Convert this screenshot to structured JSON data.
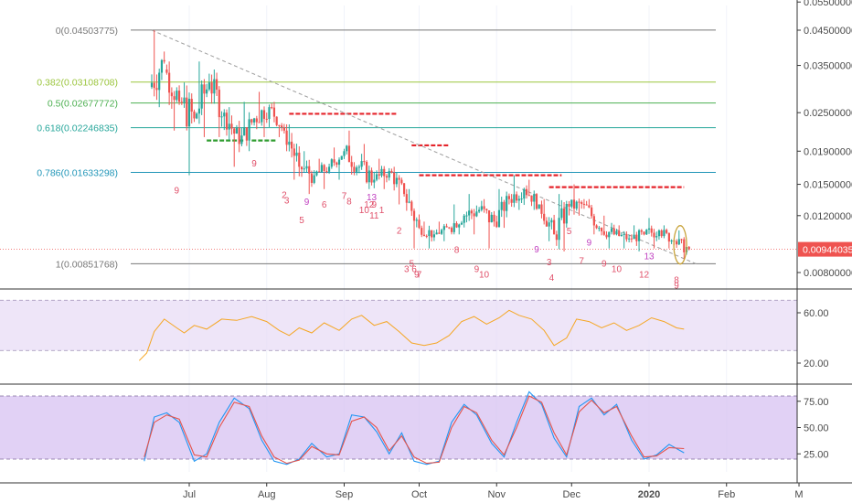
{
  "colors": {
    "up": "#26a69a",
    "down": "#ef5350",
    "rsi_line": "#f5a623",
    "rsi_band": "#e8dcf5",
    "stoch_band": "#d9c6f2",
    "stoch_k": "#2196f3",
    "stoch_d": "#e5534b",
    "last_price": "#ef5350",
    "resistance": "#e5242b",
    "support": "#2e9c2e",
    "trendline": "#9e9e9e",
    "td_sell": "#e0506a",
    "td_buy": "#c040c0",
    "circle": "#c8a33a"
  },
  "fib_levels": [
    {
      "ratio": "0",
      "price": "0.04503775",
      "value": 0.04503775,
      "label": "0(0.04503775)",
      "color": "#787878"
    },
    {
      "ratio": "0.382",
      "price": "0.03108708",
      "value": 0.03108708,
      "label": "0.382(0.03108708)",
      "color": "#9bc53d"
    },
    {
      "ratio": "0.5",
      "price": "0.02677772",
      "value": 0.02677772,
      "label": "0.5(0.02677772)",
      "color": "#4caf50"
    },
    {
      "ratio": "0.618",
      "price": "0.02246835",
      "value": 0.02246835,
      "label": "0.618(0.02246835)",
      "color": "#26a69a"
    },
    {
      "ratio": "0.786",
      "price": "0.01633298",
      "value": 0.01633298,
      "label": "0.786(0.01633298)",
      "color": "#2196b8"
    },
    {
      "ratio": "1",
      "price": "0.00851768",
      "value": 0.00851768,
      "label": "1(0.00851768)",
      "color": "#787878"
    }
  ],
  "price_axis": {
    "ticks": [
      "0.05500000",
      "0.04500000",
      "0.03500000",
      "0.02500000",
      "0.01900000",
      "0.01500000",
      "0.01200000",
      "0.00800000"
    ],
    "tick_values": [
      0.055,
      0.045,
      0.035,
      0.025,
      0.019,
      0.015,
      0.012,
      0.008
    ],
    "scale": "log",
    "last_price_label": "0.00944035",
    "last_price": 0.00944035
  },
  "time_axis": {
    "labels": [
      "Jul",
      "Aug",
      "Sep",
      "Oct",
      "Nov",
      "Dec",
      "2020",
      "Feb",
      "M"
    ],
    "dates": [
      "2019-07-01",
      "2019-08-01",
      "2019-09-01",
      "2019-10-01",
      "2019-11-01",
      "2019-12-01",
      "2020-01-01",
      "2020-02-01",
      "2020-03-01"
    ],
    "bold": [
      false,
      false,
      false,
      false,
      false,
      false,
      true,
      false,
      false
    ]
  },
  "rsi_axis": {
    "ticks": [
      "60.00",
      "20.00"
    ],
    "tick_values": [
      60,
      20
    ],
    "band": [
      30,
      70
    ]
  },
  "stoch_axis": {
    "ticks": [
      "75.00",
      "50.00",
      "25.00"
    ],
    "tick_values": [
      75,
      50,
      25
    ],
    "band": [
      20,
      80
    ]
  },
  "td_labels": [
    {
      "text": "9",
      "date": "2019-06-26",
      "kind": "sell"
    },
    {
      "text": "9",
      "date": "2019-08-17",
      "kind": "buy"
    },
    {
      "text": "9",
      "date": "2019-07-27",
      "kind": "sell"
    },
    {
      "text": "2",
      "date": "2019-08-08",
      "kind": "sell"
    },
    {
      "text": "3",
      "date": "2019-08-09",
      "kind": "sell"
    },
    {
      "text": "5",
      "date": "2019-08-15",
      "kind": "sell"
    },
    {
      "text": "6",
      "date": "2019-08-24",
      "kind": "sell"
    },
    {
      "text": "7",
      "date": "2019-09-01",
      "kind": "sell"
    },
    {
      "text": "8",
      "date": "2019-09-03",
      "kind": "sell"
    },
    {
      "text": "9",
      "date": "2019-09-13",
      "kind": "sell"
    },
    {
      "text": "10",
      "date": "2019-09-09",
      "kind": "sell"
    },
    {
      "text": "11",
      "date": "2019-09-13",
      "kind": "sell"
    },
    {
      "text": "12",
      "date": "2019-09-11",
      "kind": "sell"
    },
    {
      "text": "1",
      "date": "2019-09-16",
      "kind": "sell"
    },
    {
      "text": "2",
      "date": "2019-09-23",
      "kind": "sell"
    },
    {
      "text": "13",
      "date": "2019-09-12",
      "kind": "buy"
    },
    {
      "text": "3",
      "date": "2019-09-26",
      "kind": "sell"
    },
    {
      "text": "9",
      "date": "2019-09-30",
      "kind": "sell"
    },
    {
      "text": "5",
      "date": "2019-09-28",
      "kind": "sell"
    },
    {
      "text": "6",
      "date": "2019-09-29",
      "kind": "sell"
    },
    {
      "text": "7",
      "date": "2019-10-01",
      "kind": "sell"
    },
    {
      "text": "8",
      "date": "2019-10-16",
      "kind": "sell"
    },
    {
      "text": "9",
      "date": "2019-10-24",
      "kind": "sell"
    },
    {
      "text": "10",
      "date": "2019-10-27",
      "kind": "sell"
    },
    {
      "text": "9",
      "date": "2019-11-17",
      "kind": "buy"
    },
    {
      "text": "3",
      "date": "2019-11-22",
      "kind": "sell"
    },
    {
      "text": "4",
      "date": "2019-11-23",
      "kind": "sell"
    },
    {
      "text": "5",
      "date": "2019-11-30",
      "kind": "sell"
    },
    {
      "text": "9",
      "date": "2019-12-08",
      "kind": "buy"
    },
    {
      "text": "7",
      "date": "2019-12-05",
      "kind": "sell"
    },
    {
      "text": "9",
      "date": "2019-12-14",
      "kind": "sell"
    },
    {
      "text": "10",
      "date": "2019-12-19",
      "kind": "sell"
    },
    {
      "text": "12",
      "date": "2019-12-30",
      "kind": "sell"
    },
    {
      "text": "13",
      "date": "2020-01-01",
      "kind": "buy"
    },
    {
      "text": "8",
      "date": "2020-01-12",
      "kind": "sell"
    },
    {
      "text": "9",
      "date": "2020-01-12",
      "kind": "sell"
    }
  ],
  "chart_data": {
    "type": "candlestick",
    "title": "",
    "xlabel": "",
    "ylabel": "",
    "scale": "log",
    "x_range": [
      "2019-06-01",
      "2020-03-05"
    ],
    "ylim": [
      0.007,
      0.056
    ],
    "ohlc": [
      {
        "date": "2019-06-16",
        "open": 0.03,
        "high": 0.045,
        "low": 0.026,
        "close": 0.036
      },
      {
        "date": "2019-06-22",
        "open": 0.034,
        "high": 0.036,
        "low": 0.022,
        "close": 0.027
      },
      {
        "date": "2019-06-28",
        "open": 0.027,
        "high": 0.031,
        "low": 0.016,
        "close": 0.024
      },
      {
        "date": "2019-07-04",
        "open": 0.024,
        "high": 0.036,
        "low": 0.021,
        "close": 0.031
      },
      {
        "date": "2019-07-10",
        "open": 0.031,
        "high": 0.034,
        "low": 0.021,
        "close": 0.025
      },
      {
        "date": "2019-07-16",
        "open": 0.025,
        "high": 0.026,
        "low": 0.017,
        "close": 0.02
      },
      {
        "date": "2019-07-22",
        "open": 0.02,
        "high": 0.027,
        "low": 0.019,
        "close": 0.024
      },
      {
        "date": "2019-07-28",
        "open": 0.024,
        "high": 0.029,
        "low": 0.021,
        "close": 0.026
      },
      {
        "date": "2019-08-03",
        "open": 0.026,
        "high": 0.027,
        "low": 0.021,
        "close": 0.022
      },
      {
        "date": "2019-08-09",
        "open": 0.022,
        "high": 0.023,
        "low": 0.0155,
        "close": 0.017
      },
      {
        "date": "2019-08-15",
        "open": 0.017,
        "high": 0.019,
        "low": 0.014,
        "close": 0.016
      },
      {
        "date": "2019-08-21",
        "open": 0.016,
        "high": 0.018,
        "low": 0.0145,
        "close": 0.017
      },
      {
        "date": "2019-08-27",
        "open": 0.017,
        "high": 0.0195,
        "low": 0.0155,
        "close": 0.019
      },
      {
        "date": "2019-09-02",
        "open": 0.019,
        "high": 0.022,
        "low": 0.016,
        "close": 0.017
      },
      {
        "date": "2019-09-08",
        "open": 0.017,
        "high": 0.02,
        "low": 0.0145,
        "close": 0.0155
      },
      {
        "date": "2019-09-14",
        "open": 0.0155,
        "high": 0.018,
        "low": 0.0145,
        "close": 0.0165
      },
      {
        "date": "2019-09-20",
        "open": 0.0165,
        "high": 0.017,
        "low": 0.013,
        "close": 0.014
      },
      {
        "date": "2019-09-26",
        "open": 0.014,
        "high": 0.0145,
        "low": 0.0095,
        "close": 0.011
      },
      {
        "date": "2019-10-02",
        "open": 0.011,
        "high": 0.0115,
        "low": 0.0095,
        "close": 0.0105
      },
      {
        "date": "2019-10-08",
        "open": 0.0105,
        "high": 0.0115,
        "low": 0.01,
        "close": 0.011
      },
      {
        "date": "2019-10-14",
        "open": 0.011,
        "high": 0.013,
        "low": 0.0105,
        "close": 0.012
      },
      {
        "date": "2019-10-20",
        "open": 0.012,
        "high": 0.014,
        "low": 0.0105,
        "close": 0.0125
      },
      {
        "date": "2019-10-26",
        "open": 0.0125,
        "high": 0.0135,
        "low": 0.0095,
        "close": 0.0115
      },
      {
        "date": "2019-11-01",
        "open": 0.0115,
        "high": 0.0145,
        "low": 0.011,
        "close": 0.0135
      },
      {
        "date": "2019-11-07",
        "open": 0.0135,
        "high": 0.016,
        "low": 0.0125,
        "close": 0.0145
      },
      {
        "date": "2019-11-13",
        "open": 0.0145,
        "high": 0.0155,
        "low": 0.0125,
        "close": 0.013
      },
      {
        "date": "2019-11-19",
        "open": 0.013,
        "high": 0.0135,
        "low": 0.01,
        "close": 0.0105
      },
      {
        "date": "2019-11-25",
        "open": 0.0105,
        "high": 0.014,
        "low": 0.0093,
        "close": 0.0128
      },
      {
        "date": "2019-12-01",
        "open": 0.0128,
        "high": 0.015,
        "low": 0.012,
        "close": 0.013
      },
      {
        "date": "2019-12-07",
        "open": 0.013,
        "high": 0.0135,
        "low": 0.0105,
        "close": 0.011
      },
      {
        "date": "2019-12-13",
        "open": 0.011,
        "high": 0.012,
        "low": 0.0095,
        "close": 0.0105
      },
      {
        "date": "2019-12-19",
        "open": 0.0105,
        "high": 0.0112,
        "low": 0.0095,
        "close": 0.0102
      },
      {
        "date": "2019-12-25",
        "open": 0.0102,
        "high": 0.0112,
        "low": 0.0093,
        "close": 0.0105
      },
      {
        "date": "2019-12-31",
        "open": 0.0105,
        "high": 0.0118,
        "low": 0.0095,
        "close": 0.0108
      },
      {
        "date": "2020-01-06",
        "open": 0.0108,
        "high": 0.0112,
        "low": 0.0095,
        "close": 0.01
      },
      {
        "date": "2020-01-12",
        "open": 0.01,
        "high": 0.0108,
        "low": 0.0088,
        "close": 0.00944
      }
    ],
    "trendline": [
      {
        "date": "2019-06-16",
        "value": 0.045
      },
      {
        "date": "2020-01-20",
        "value": 0.0085
      }
    ],
    "resistance_levels": [
      {
        "value": 0.0248,
        "from": "2019-08-10",
        "to": "2019-09-22"
      },
      {
        "value": 0.0198,
        "from": "2019-09-28",
        "to": "2019-10-13"
      },
      {
        "value": 0.016,
        "from": "2019-10-01",
        "to": "2019-11-27"
      },
      {
        "value": 0.0147,
        "from": "2019-11-22",
        "to": "2020-01-15"
      }
    ],
    "support_levels": [
      {
        "value": 0.0205,
        "from": "2019-07-08",
        "to": "2019-07-23"
      },
      {
        "value": 0.0205,
        "from": "2019-07-26",
        "to": "2019-08-05"
      }
    ],
    "series": [
      {
        "name": "RSI",
        "type": "line",
        "ylim": [
          10,
          75
        ],
        "x": [
          "2019-06-11",
          "2019-06-14",
          "2019-06-17",
          "2019-06-21",
          "2019-06-26",
          "2019-06-29",
          "2019-07-03",
          "2019-07-08",
          "2019-07-14",
          "2019-07-20",
          "2019-07-26",
          "2019-08-01",
          "2019-08-06",
          "2019-08-10",
          "2019-08-14",
          "2019-08-19",
          "2019-08-24",
          "2019-08-30",
          "2019-09-04",
          "2019-09-08",
          "2019-09-13",
          "2019-09-18",
          "2019-09-23",
          "2019-09-28",
          "2019-10-03",
          "2019-10-08",
          "2019-10-13",
          "2019-10-18",
          "2019-10-23",
          "2019-10-28",
          "2019-11-02",
          "2019-11-06",
          "2019-11-10",
          "2019-11-15",
          "2019-11-20",
          "2019-11-24",
          "2019-11-29",
          "2019-12-03",
          "2019-12-08",
          "2019-12-13",
          "2019-12-18",
          "2019-12-23",
          "2019-12-28",
          "2020-01-02",
          "2020-01-07",
          "2020-01-12",
          "2020-01-15"
        ],
        "values": [
          22,
          28,
          45,
          55,
          48,
          44,
          50,
          47,
          55,
          54,
          57,
          53,
          46,
          42,
          48,
          44,
          52,
          46,
          55,
          58,
          50,
          53,
          45,
          36,
          34,
          36,
          42,
          53,
          57,
          51,
          56,
          62,
          58,
          55,
          46,
          34,
          40,
          55,
          53,
          48,
          52,
          46,
          50,
          56,
          53,
          48,
          47
        ]
      },
      {
        "name": "%K",
        "type": "line",
        "ylim": [
          10,
          90
        ],
        "x": [
          "2019-06-13",
          "2019-06-17",
          "2019-06-22",
          "2019-06-27",
          "2019-07-03",
          "2019-07-08",
          "2019-07-13",
          "2019-07-19",
          "2019-07-25",
          "2019-07-30",
          "2019-08-04",
          "2019-08-09",
          "2019-08-14",
          "2019-08-19",
          "2019-08-25",
          "2019-08-30",
          "2019-09-04",
          "2019-09-09",
          "2019-09-14",
          "2019-09-19",
          "2019-09-24",
          "2019-09-29",
          "2019-10-04",
          "2019-10-09",
          "2019-10-14",
          "2019-10-19",
          "2019-10-24",
          "2019-10-30",
          "2019-11-04",
          "2019-11-09",
          "2019-11-14",
          "2019-11-19",
          "2019-11-24",
          "2019-11-29",
          "2019-12-04",
          "2019-12-09",
          "2019-12-14",
          "2019-12-19",
          "2019-12-25",
          "2019-12-30",
          "2020-01-04",
          "2020-01-09",
          "2020-01-15"
        ],
        "values": [
          18,
          60,
          64,
          55,
          18,
          25,
          55,
          78,
          68,
          38,
          18,
          15,
          20,
          35,
          22,
          25,
          62,
          60,
          46,
          25,
          45,
          18,
          15,
          18,
          55,
          72,
          62,
          35,
          22,
          55,
          84,
          72,
          40,
          22,
          70,
          78,
          62,
          72,
          38,
          20,
          24,
          34,
          26
        ]
      },
      {
        "name": "%D",
        "type": "line",
        "ylim": [
          10,
          90
        ],
        "x": [
          "2019-06-13",
          "2019-06-17",
          "2019-06-22",
          "2019-06-27",
          "2019-07-03",
          "2019-07-08",
          "2019-07-13",
          "2019-07-19",
          "2019-07-25",
          "2019-07-30",
          "2019-08-04",
          "2019-08-09",
          "2019-08-14",
          "2019-08-19",
          "2019-08-25",
          "2019-08-30",
          "2019-09-04",
          "2019-09-09",
          "2019-09-14",
          "2019-09-19",
          "2019-09-24",
          "2019-09-29",
          "2019-10-04",
          "2019-10-09",
          "2019-10-14",
          "2019-10-19",
          "2019-10-24",
          "2019-10-30",
          "2019-11-04",
          "2019-11-09",
          "2019-11-14",
          "2019-11-19",
          "2019-11-24",
          "2019-11-29",
          "2019-12-04",
          "2019-12-09",
          "2019-12-14",
          "2019-12-19",
          "2019-12-25",
          "2019-12-30",
          "2020-01-04",
          "2020-01-09",
          "2020-01-15"
        ],
        "values": [
          22,
          55,
          62,
          58,
          24,
          22,
          50,
          74,
          70,
          42,
          22,
          16,
          19,
          32,
          25,
          24,
          56,
          60,
          50,
          28,
          42,
          22,
          16,
          17,
          50,
          70,
          64,
          38,
          24,
          50,
          80,
          74,
          45,
          24,
          65,
          76,
          64,
          70,
          42,
          22,
          23,
          31,
          30
        ]
      }
    ]
  }
}
